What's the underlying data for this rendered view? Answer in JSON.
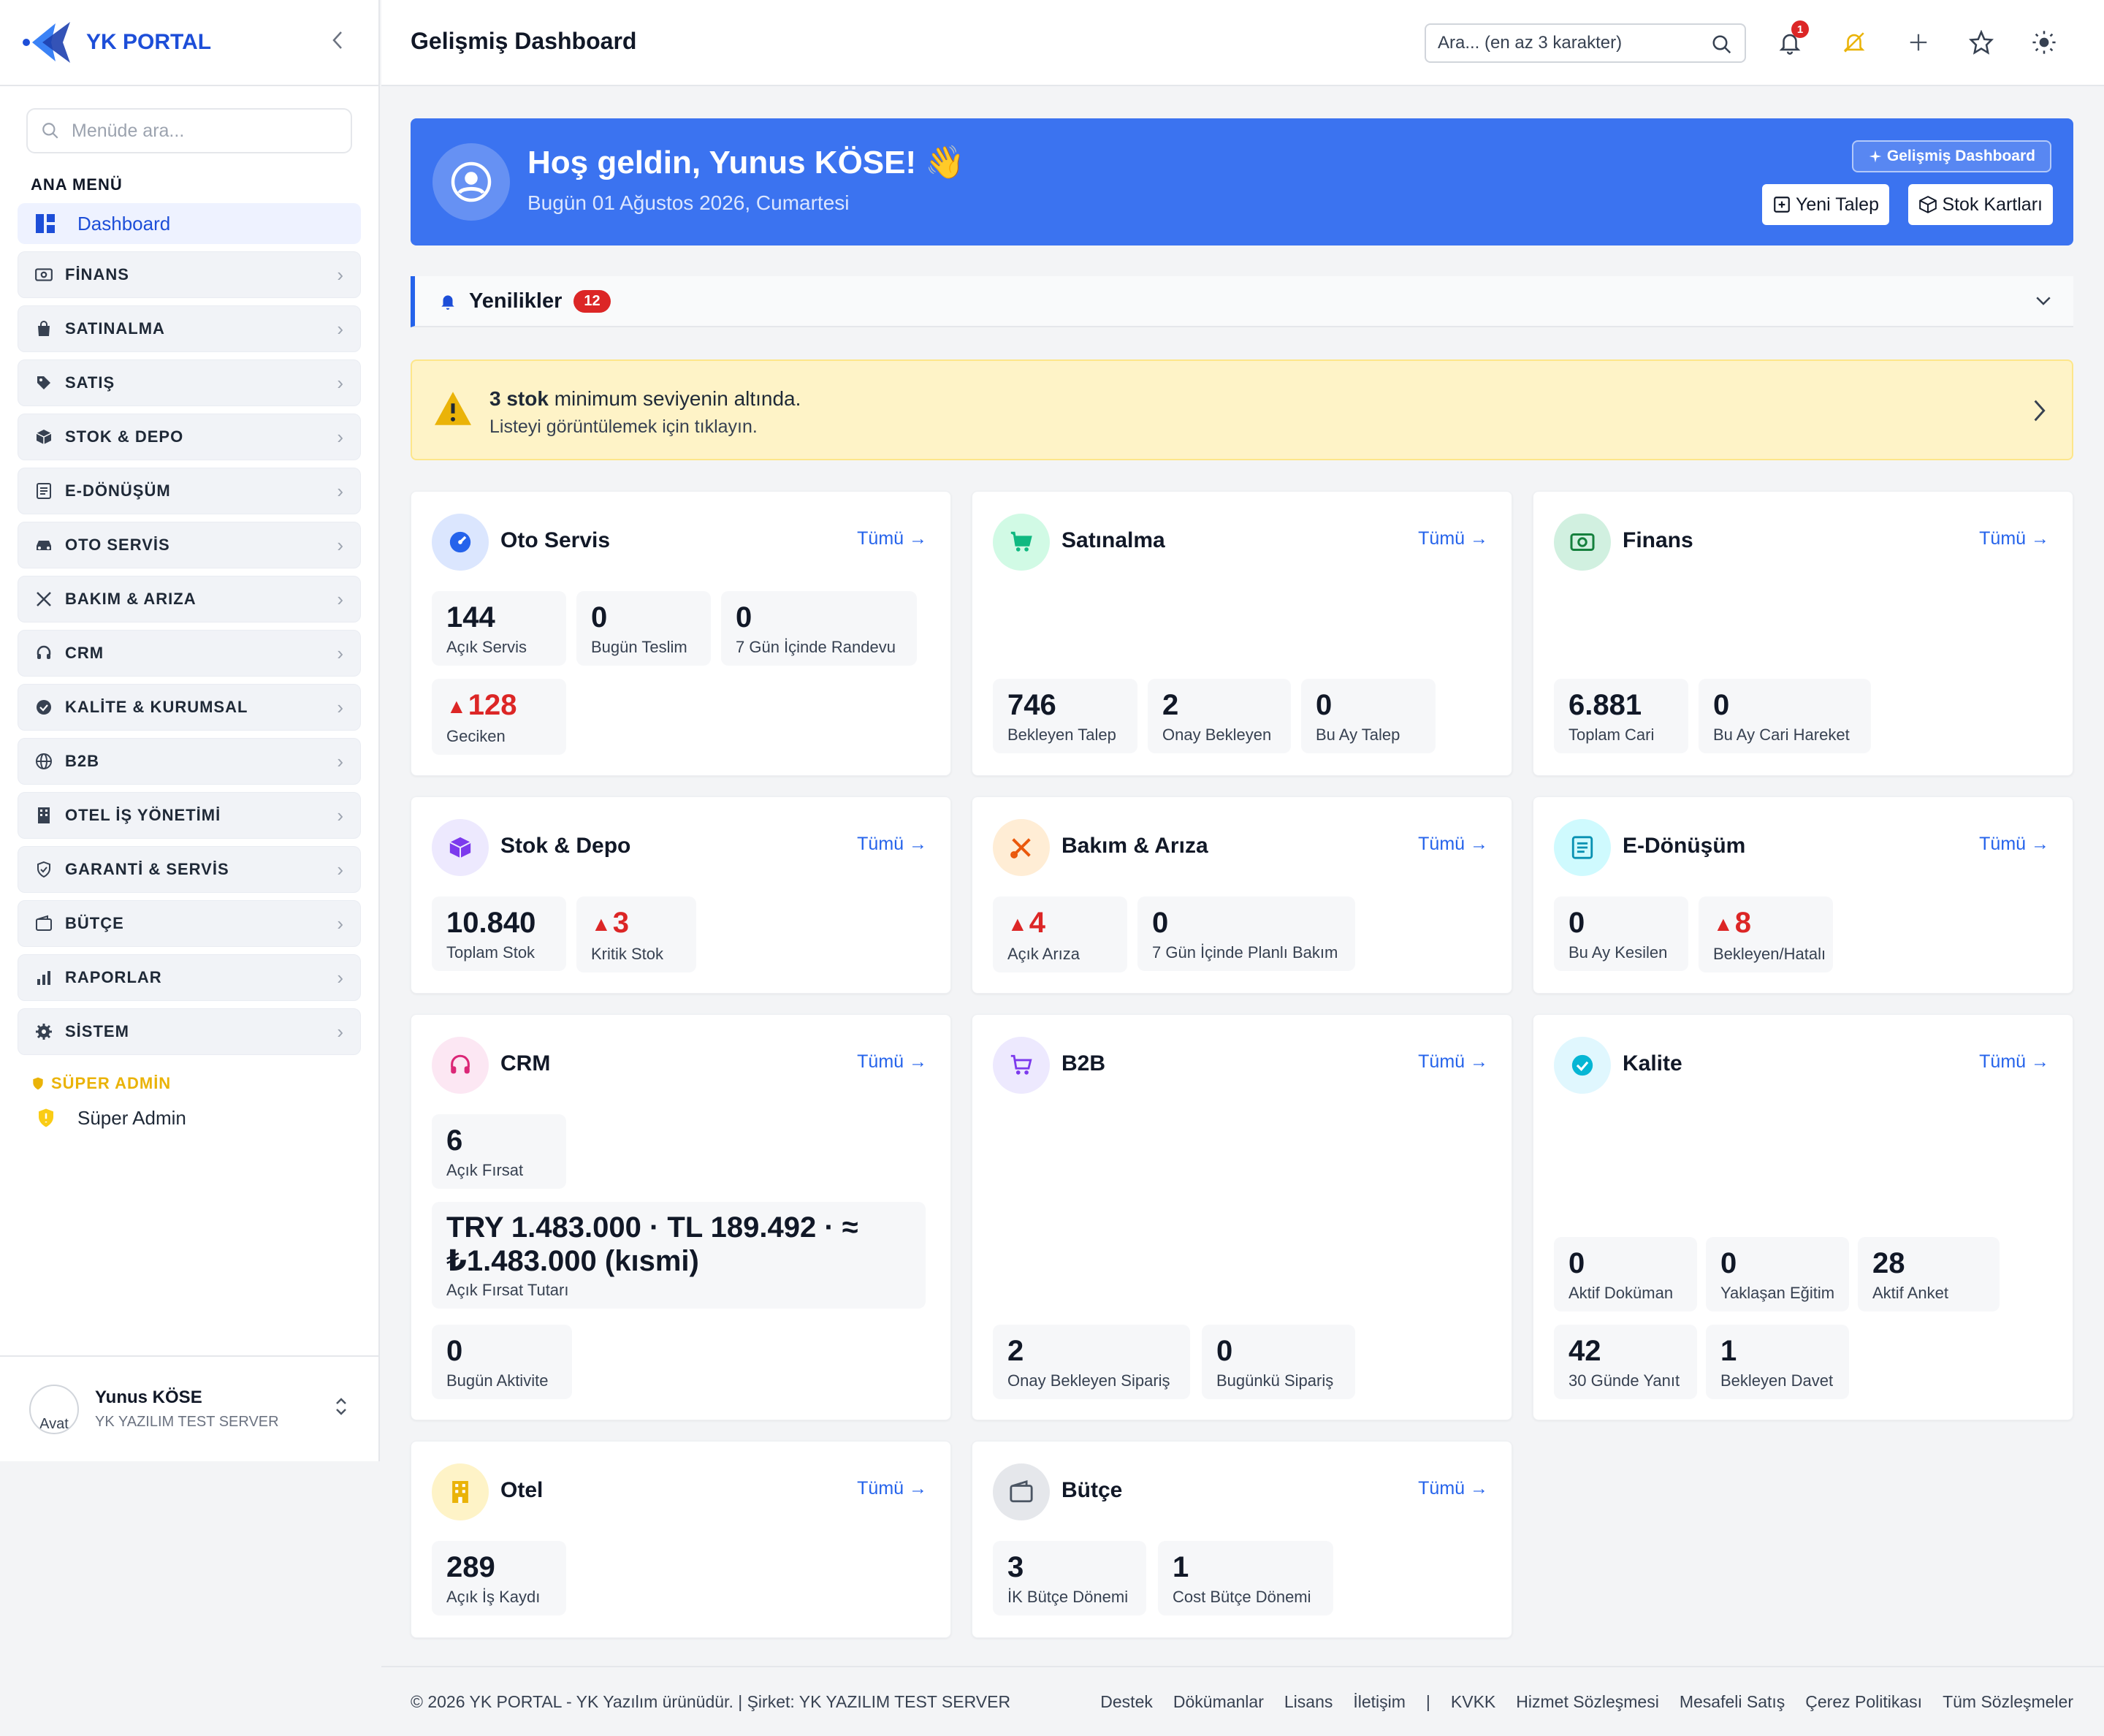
{
  "brand": {
    "name": "YK PORTAL"
  },
  "sidebar": {
    "search_placeholder": "Menüde ara...",
    "section": "ANA MENÜ",
    "dashboard": "Dashboard",
    "items": [
      {
        "label": "FİNANS",
        "icon": "finance-icon"
      },
      {
        "label": "SATINALMA",
        "icon": "shopping-bag-icon"
      },
      {
        "label": "SATIŞ",
        "icon": "tag-icon"
      },
      {
        "label": "STOK & DEPO",
        "icon": "box-icon"
      },
      {
        "label": "E-DÖNÜŞÜM",
        "icon": "document-icon"
      },
      {
        "label": "OTO SERVİS",
        "icon": "car-icon"
      },
      {
        "label": "BAKIM & ARIZA",
        "icon": "tools-icon"
      },
      {
        "label": "CRM",
        "icon": "headset-icon"
      },
      {
        "label": "KALİTE & KURUMSAL",
        "icon": "badge-check-icon"
      },
      {
        "label": "B2B",
        "icon": "globe-icon"
      },
      {
        "label": "OTEL İŞ YÖNETİMİ",
        "icon": "building-icon"
      },
      {
        "label": "GARANTİ & SERVİS",
        "icon": "shield-icon"
      },
      {
        "label": "BÜTÇE",
        "icon": "wallet-icon"
      },
      {
        "label": "RAPORLAR",
        "icon": "bar-chart-icon"
      },
      {
        "label": "SİSTEM",
        "icon": "gear-icon"
      }
    ],
    "super_title": "SÜPER ADMİN",
    "super_item": "Süper Admin",
    "user": {
      "name": "Yunus KÖSE",
      "company": "YK YAZILIM TEST SERVER",
      "avatar_alt": "Avat"
    }
  },
  "topbar": {
    "title": "Gelişmiş Dashboard",
    "search_placeholder": "Ara... (en az 3 karakter)",
    "notif_count": "1"
  },
  "welcome": {
    "hello": "Hoş geldin, Yunus KÖSE! 👋",
    "date": "Bugün 01 Ağustos 2026, Cumartesi",
    "advanced": "Gelişmiş Dashboard",
    "new_request": "Yeni Talep",
    "stock_cards": "Stok Kartları"
  },
  "news": {
    "title": "Yenilikler",
    "count": "12"
  },
  "alert": {
    "bold": "3 stok",
    "rest": " minimum seviyenin altında.",
    "line2": "Listeyi görüntülemek için tıklayın."
  },
  "all_label": "Tümü",
  "cards": {
    "oto": {
      "title": "Oto Servis",
      "stats": [
        {
          "v": "144",
          "l": "Açık Servis"
        },
        {
          "v": "0",
          "l": "Bugün Teslim"
        },
        {
          "v": "0",
          "l": "7 Gün İçinde Randevu"
        },
        {
          "v": "128",
          "l": "Geciken"
        }
      ]
    },
    "satin": {
      "title": "Satınalma",
      "stats": [
        {
          "v": "746",
          "l": "Bekleyen Talep"
        },
        {
          "v": "2",
          "l": "Onay Bekleyen"
        },
        {
          "v": "0",
          "l": "Bu Ay Talep"
        }
      ]
    },
    "finans": {
      "title": "Finans",
      "stats": [
        {
          "v": "6.881",
          "l": "Toplam Cari"
        },
        {
          "v": "0",
          "l": "Bu Ay Cari Hareket"
        }
      ]
    },
    "stok": {
      "title": "Stok & Depo",
      "stats": [
        {
          "v": "10.840",
          "l": "Toplam Stok"
        },
        {
          "v": "3",
          "l": "Kritik Stok"
        }
      ]
    },
    "bakim": {
      "title": "Bakım & Arıza",
      "stats": [
        {
          "v": "4",
          "l": "Açık Arıza"
        },
        {
          "v": "0",
          "l": "7 Gün İçinde Planlı Bakım"
        }
      ]
    },
    "edon": {
      "title": "E-Dönüşüm",
      "stats": [
        {
          "v": "0",
          "l": "Bu Ay Kesilen"
        },
        {
          "v": "8",
          "l": "Bekleyen/Hatalı"
        }
      ]
    },
    "crm": {
      "title": "CRM",
      "stats": [
        {
          "v": "6",
          "l": "Açık Fırsat"
        },
        {
          "v": "TRY 1.483.000 · TL 189.492 · ≈ ₺1.483.000 (kısmi)",
          "l": "Açık Fırsat Tutarı"
        },
        {
          "v": "0",
          "l": "Bugün Aktivite"
        }
      ]
    },
    "b2b": {
      "title": "B2B",
      "stats": [
        {
          "v": "2",
          "l": "Onay Bekleyen Sipariş"
        },
        {
          "v": "0",
          "l": "Bugünkü Sipariş"
        }
      ]
    },
    "kalite": {
      "title": "Kalite",
      "stats": [
        {
          "v": "0",
          "l": "Aktif Doküman"
        },
        {
          "v": "0",
          "l": "Yaklaşan Eğitim"
        },
        {
          "v": "28",
          "l": "Aktif Anket"
        },
        {
          "v": "42",
          "l": "30 Günde Yanıt"
        },
        {
          "v": "1",
          "l": "Bekleyen Davet"
        }
      ]
    },
    "otel": {
      "title": "Otel",
      "stats": [
        {
          "v": "289",
          "l": "Açık İş Kaydı"
        }
      ]
    },
    "butce": {
      "title": "Bütçe",
      "stats": [
        {
          "v": "3",
          "l": "İK Bütçe Dönemi"
        },
        {
          "v": "1",
          "l": "Cost Bütçe Dönemi"
        }
      ]
    }
  },
  "footer": {
    "copy": "© 2026 YK PORTAL - YK Yazılım ürünüdür. | Şirket: YK YAZILIM TEST SERVER",
    "links": [
      "Destek",
      "Dökümanlar",
      "Lisans",
      "İletişim",
      "|",
      "KVKK",
      "Hizmet Sözleşmesi",
      "Mesafeli Satış",
      "Çerez Politikası",
      "Tüm Sözleşmeler"
    ]
  },
  "colors": {
    "primary": "#2563eb",
    "banner": "#3b73f0",
    "danger": "#dc2626",
    "warning_bg": "#fef3c7",
    "super": "#eab308"
  }
}
